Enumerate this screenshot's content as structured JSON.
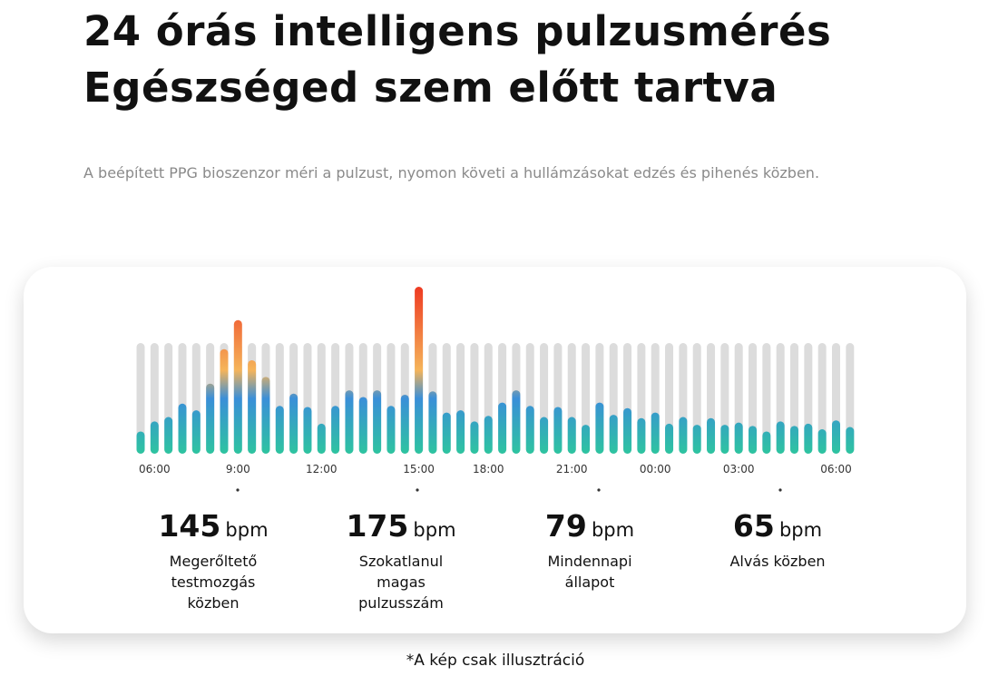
{
  "header": {
    "title_line1": "24 órás intelligens pulzusmérés",
    "title_line2": "Egészséged szem előtt tartva",
    "subtitle": "A beépített PPG bioszenzor méri a pulzust, nyomon követi a hullámzásokat edzés és pihenés közben."
  },
  "chart_data": {
    "type": "bar",
    "categories": [
      null,
      "06:00",
      null,
      null,
      null,
      null,
      null,
      "9:00",
      null,
      null,
      null,
      null,
      null,
      "12:00",
      null,
      null,
      null,
      null,
      null,
      null,
      "15:00",
      null,
      null,
      null,
      null,
      "18:00",
      null,
      null,
      null,
      null,
      null,
      "21:00",
      null,
      null,
      null,
      null,
      null,
      "00:00",
      null,
      null,
      null,
      null,
      null,
      "03:00",
      null,
      null,
      null,
      null,
      null,
      null,
      "06:00",
      null
    ],
    "values": [
      45,
      54,
      58,
      70,
      64,
      88,
      119,
      145,
      109,
      94,
      68,
      79,
      67,
      52,
      68,
      82,
      76,
      82,
      68,
      78,
      175,
      81,
      62,
      64,
      54,
      59,
      71,
      82,
      68,
      58,
      67,
      58,
      51,
      71,
      60,
      66,
      57,
      62,
      52,
      58,
      51,
      57,
      51,
      53,
      50,
      45,
      54,
      50,
      52,
      47,
      55,
      49
    ],
    "ylim": [
      25,
      175
    ],
    "colors": [
      "#2ec4a0",
      "#3a8fd8",
      "#f5b45a",
      "#ee3a22"
    ],
    "track_color": "#dcdcdc"
  },
  "stats": [
    {
      "value": "145",
      "unit": "bpm",
      "label": "Megerőltető testmozgás közben"
    },
    {
      "value": "175",
      "unit": "bpm",
      "label": "Szokatlanul magas pulzusszám"
    },
    {
      "value": "79",
      "unit": "bpm",
      "label": "Mindennapi állapot"
    },
    {
      "value": "65",
      "unit": "bpm",
      "label": "Alvás közben"
    }
  ],
  "footnote": "*A kép csak illusztráció"
}
